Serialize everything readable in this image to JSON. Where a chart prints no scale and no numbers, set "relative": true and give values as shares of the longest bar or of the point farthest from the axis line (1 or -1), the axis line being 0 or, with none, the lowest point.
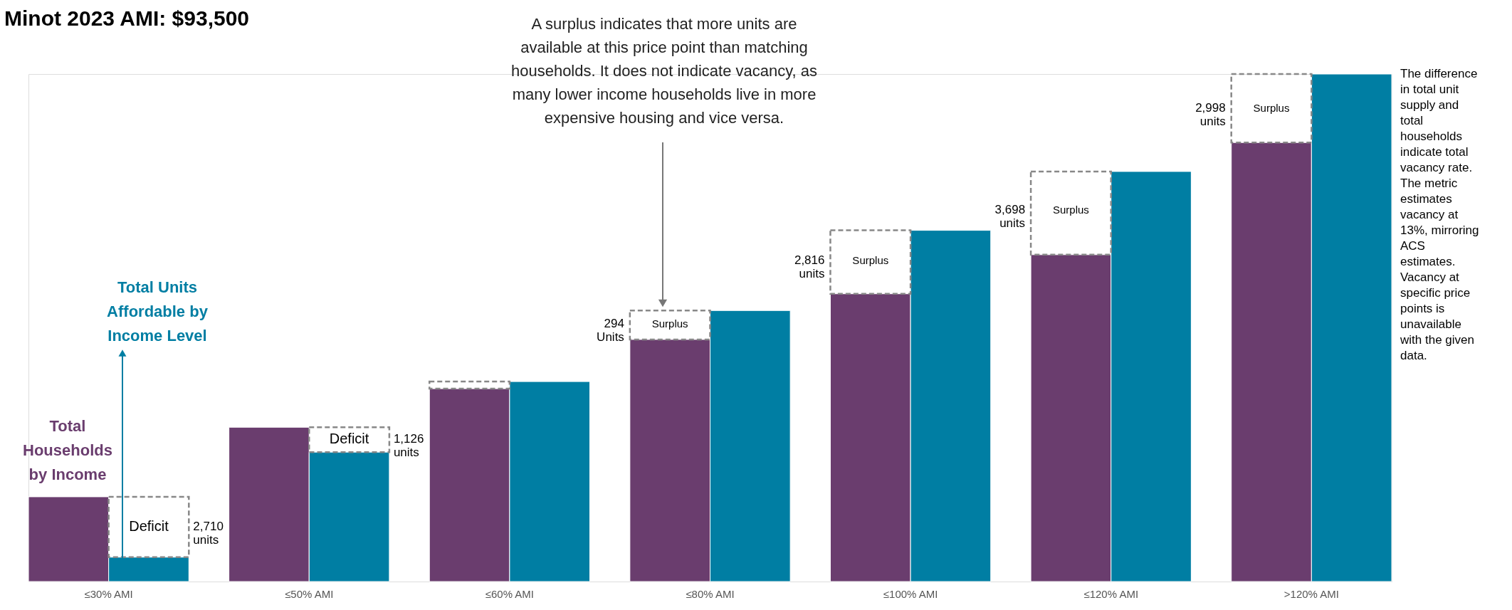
{
  "chart_data": {
    "type": "bar",
    "relative": true,
    "title": "Minot 2023 AMI: $93,500",
    "categories": [
      "≤30% AMI",
      "≤50% AMI",
      "≤60% AMI",
      "≤80% AMI",
      "≤100% AMI",
      "≤120% AMI",
      ">120% AMI"
    ],
    "series": [
      {
        "name": "Total\nHouseholds\nby Income",
        "color": "#6a3d6e",
        "values": [
          0.167,
          0.304,
          0.38,
          0.477,
          0.567,
          0.644,
          0.865
        ]
      },
      {
        "name": "Total Units\nAffordable by\nIncome Level",
        "color": "#007ea3",
        "values": [
          0.048,
          0.255,
          0.394,
          0.534,
          0.692,
          0.808,
          1.0
        ]
      }
    ],
    "annotations": [
      {
        "text": "Deficit",
        "x": "≤30% AMI",
        "y": 0.108
      },
      "2,710\nunits",
      {
        "text": "Deficit",
        "x": "≤50% AMI",
        "y": 0.281
      },
      "1,126\nunits",
      {
        "text": "Surplus",
        "x": "≤80% AMI",
        "y": 0.508
      },
      "294\nUnits",
      {
        "text": "Surplus",
        "x": "≤100% AMI",
        "y": 0.633
      },
      "2,816\nunits",
      {
        "text": "Surplus",
        "x": "≤120% AMI",
        "y": 0.732
      },
      "3,698\nunits",
      {
        "text": "Surplus",
        "x": ">120% AMI",
        "y": 0.933
      },
      "2,998\nunits",
      "A surplus indicates that more units are\navailable at this price point than matching\nhouseholds. It does not indicate vacancy, as\nmany lower income households live in more\nexpensive housing and vice versa.",
      "The difference\nin  total unit\nsupply and\ntotal\nhouseholds\nindicate total\nvacancy rate.\nThe metric\nestimates\nvacancy at\n13%, mirroring\nACS\nestimates.\nVacancy at\nspecific price\npoints is\nunavailable\nwith the given\ndata."
    ]
  }
}
